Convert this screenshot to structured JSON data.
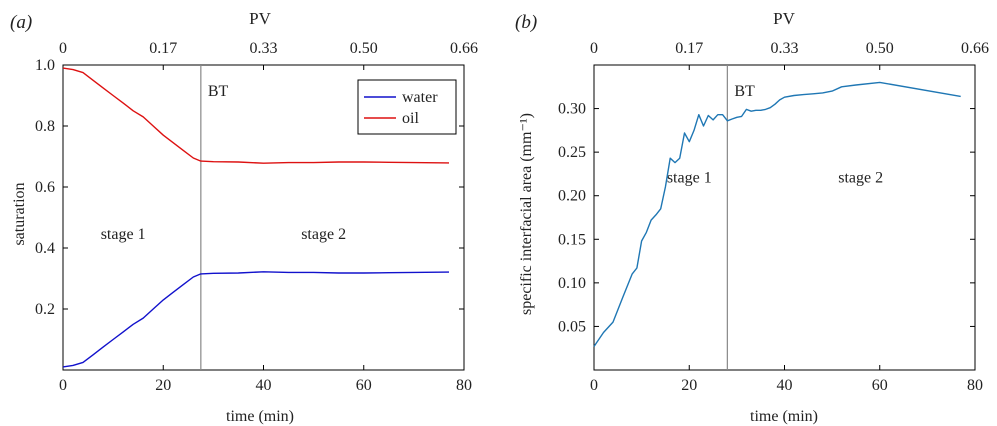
{
  "chart_data": [
    {
      "type": "line",
      "panel_label": "(a)",
      "xlabel": "time (min)",
      "ylabel": "saturation",
      "top_axis_label": "PV",
      "top_ticks": [
        "0",
        "0.17",
        "0.33",
        "0.50",
        "0.66"
      ],
      "xlim": [
        0,
        80
      ],
      "ylim": [
        0,
        1.0
      ],
      "xticks": [
        0,
        20,
        40,
        60,
        80
      ],
      "yticks": [
        0.2,
        0.4,
        0.6,
        0.8,
        1.0
      ],
      "ytick_labels": [
        "0.2",
        "0.4",
        "0.6",
        "0.8",
        "1.0"
      ],
      "grid": false,
      "legend_position": "top-right",
      "breakthrough": {
        "x": 27.5,
        "label": "BT"
      },
      "stage_labels": [
        {
          "text": "stage 1",
          "x": 12,
          "y": 0.43
        },
        {
          "text": "stage 2",
          "x": 52,
          "y": 0.43
        }
      ],
      "series": [
        {
          "name": "water",
          "color": "#1111cc",
          "x": [
            0,
            2,
            4,
            6,
            8,
            10,
            12,
            14,
            16,
            18,
            20,
            22,
            24,
            26,
            27.5,
            30,
            35,
            40,
            45,
            50,
            55,
            60,
            65,
            70,
            77
          ],
          "y": [
            0.01,
            0.015,
            0.025,
            0.05,
            0.075,
            0.1,
            0.125,
            0.15,
            0.17,
            0.2,
            0.23,
            0.255,
            0.28,
            0.305,
            0.315,
            0.317,
            0.318,
            0.322,
            0.32,
            0.32,
            0.318,
            0.318,
            0.319,
            0.32,
            0.321
          ]
        },
        {
          "name": "oil",
          "color": "#dd1111",
          "x": [
            0,
            2,
            4,
            6,
            8,
            10,
            12,
            14,
            16,
            18,
            20,
            22,
            24,
            26,
            27.5,
            30,
            35,
            40,
            45,
            50,
            55,
            60,
            65,
            70,
            77
          ],
          "y": [
            0.99,
            0.985,
            0.975,
            0.95,
            0.925,
            0.9,
            0.875,
            0.85,
            0.83,
            0.8,
            0.77,
            0.745,
            0.72,
            0.695,
            0.685,
            0.683,
            0.682,
            0.678,
            0.68,
            0.68,
            0.682,
            0.682,
            0.681,
            0.68,
            0.679
          ]
        }
      ]
    },
    {
      "type": "line",
      "panel_label": "(b)",
      "xlabel": "time (min)",
      "ylabel": "specific interfacial area (mm⁻¹)",
      "top_axis_label": "PV",
      "top_ticks": [
        "0",
        "0.17",
        "0.33",
        "0.50",
        "0.66"
      ],
      "xlim": [
        0,
        80
      ],
      "ylim": [
        0,
        0.35
      ],
      "xticks": [
        0,
        20,
        40,
        60,
        80
      ],
      "yticks": [
        0.05,
        0.1,
        0.15,
        0.2,
        0.25,
        0.3
      ],
      "ytick_labels": [
        "0.05",
        "0.10",
        "0.15",
        "0.20",
        "0.25",
        "0.30"
      ],
      "grid": false,
      "breakthrough": {
        "x": 28,
        "label": "BT"
      },
      "stage_labels": [
        {
          "text": "stage 1",
          "x": 20,
          "y": 0.215
        },
        {
          "text": "stage 2",
          "x": 56,
          "y": 0.215
        }
      ],
      "series": [
        {
          "name": "",
          "color": "#1f77b4",
          "x": [
            0,
            2,
            4,
            6,
            8,
            9,
            10,
            11,
            12,
            13,
            14,
            15,
            16,
            17,
            18,
            19,
            20,
            21,
            22,
            23,
            24,
            25,
            26,
            27,
            28,
            29,
            30,
            31,
            32,
            33,
            34,
            35,
            36,
            37,
            38,
            39,
            40,
            42,
            44,
            46,
            48,
            50,
            52,
            55,
            60,
            77
          ],
          "y": [
            0.027,
            0.043,
            0.055,
            0.083,
            0.11,
            0.117,
            0.148,
            0.158,
            0.172,
            0.178,
            0.185,
            0.21,
            0.243,
            0.238,
            0.243,
            0.272,
            0.262,
            0.275,
            0.293,
            0.28,
            0.292,
            0.287,
            0.293,
            0.293,
            0.286,
            0.288,
            0.29,
            0.291,
            0.299,
            0.297,
            0.298,
            0.298,
            0.299,
            0.301,
            0.305,
            0.31,
            0.313,
            0.315,
            0.316,
            0.317,
            0.318,
            0.32,
            0.325,
            0.327,
            0.33,
            0.314
          ]
        }
      ]
    }
  ]
}
